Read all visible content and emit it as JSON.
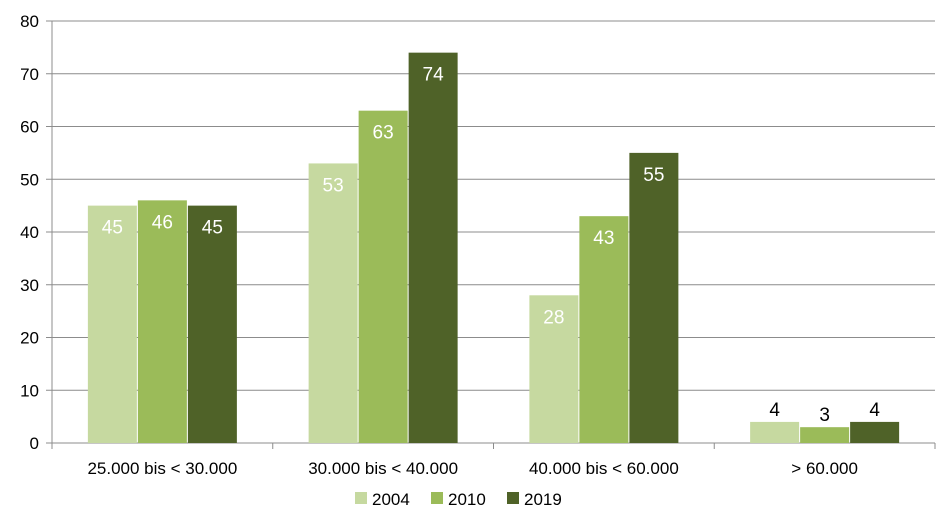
{
  "chart_data": {
    "type": "bar",
    "categories": [
      "25.000 bis < 30.000",
      "30.000 bis < 40.000",
      "40.000 bis < 60.000",
      "> 60.000"
    ],
    "series": [
      {
        "name": "2004",
        "color": "#c6d9a0",
        "label_color": "#ffffff",
        "values": [
          45,
          53,
          28,
          4
        ]
      },
      {
        "name": "2010",
        "color": "#9bbb59",
        "label_color": "#ffffff",
        "values": [
          46,
          63,
          43,
          3
        ]
      },
      {
        "name": "2019",
        "color": "#4f6228",
        "label_color": "#ffffff",
        "values": [
          45,
          74,
          55,
          4
        ]
      }
    ],
    "ylim": [
      0,
      80
    ],
    "yticks": [
      0,
      10,
      20,
      30,
      40,
      50,
      60,
      70,
      80
    ],
    "grid": true,
    "legend_position": "bottom",
    "title": "",
    "xlabel": "",
    "ylabel": ""
  }
}
